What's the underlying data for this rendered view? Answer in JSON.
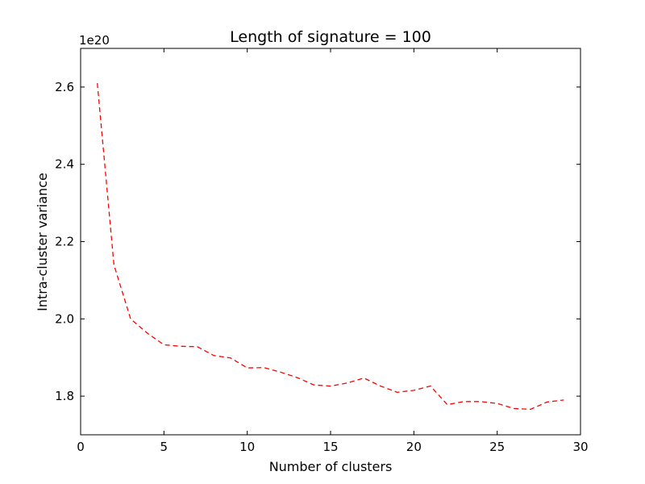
{
  "chart_data": {
    "type": "line",
    "title": "Length of signature = 100",
    "xlabel": "Number of clusters",
    "ylabel": "Intra-cluster variance",
    "y_scale_label": "1e20",
    "xlim": [
      0,
      30
    ],
    "ylim": [
      1.7,
      2.7
    ],
    "xticks": [
      0,
      5,
      10,
      15,
      20,
      25,
      30
    ],
    "xtick_labels": [
      "0",
      "5",
      "10",
      "15",
      "20",
      "25",
      "30"
    ],
    "yticks": [
      1.8,
      2.0,
      2.2,
      2.4,
      2.6
    ],
    "ytick_labels": [
      "1.8",
      "2.0",
      "2.2",
      "2.4",
      "2.6"
    ],
    "grid": false,
    "series": [
      {
        "color": "#ff0000",
        "line_style": "dashed",
        "x": [
          1,
          2,
          3,
          4,
          5,
          6,
          7,
          8,
          9,
          10,
          11,
          12,
          13,
          14,
          15,
          16,
          17,
          18,
          19,
          20,
          21,
          22,
          23,
          24,
          25,
          26,
          27,
          28,
          29
        ],
        "y": [
          2.61,
          2.14,
          2.0,
          1.963,
          1.933,
          1.929,
          1.928,
          1.905,
          1.899,
          1.873,
          1.874,
          1.862,
          1.848,
          1.829,
          1.826,
          1.834,
          1.847,
          1.826,
          1.81,
          1.815,
          1.826,
          1.778,
          1.786,
          1.786,
          1.781,
          1.768,
          1.766,
          1.785,
          1.79
        ]
      }
    ]
  }
}
